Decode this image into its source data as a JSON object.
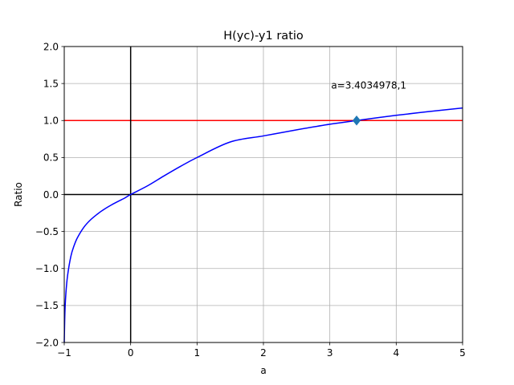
{
  "chart_data": {
    "type": "line",
    "title": "H(yc)-y1 ratio",
    "xlabel": "a",
    "ylabel": "Ratio",
    "xlim": [
      -1,
      5
    ],
    "ylim": [
      -2,
      2
    ],
    "xticks": [
      -1,
      0,
      1,
      2,
      3,
      4,
      5
    ],
    "yticks": [
      -2.0,
      -1.5,
      -1.0,
      -0.5,
      0.0,
      0.5,
      1.0,
      1.5,
      2.0
    ],
    "xtick_labels": [
      "−1",
      "0",
      "1",
      "2",
      "3",
      "4",
      "5"
    ],
    "ytick_labels": [
      "−2.0",
      "−1.5",
      "−1.0",
      "−0.5",
      "0.0",
      "0.5",
      "1.0",
      "1.5",
      "2.0"
    ],
    "grid": true,
    "series": [
      {
        "color": "#0000ff",
        "x": [
          -0.9999,
          -0.99,
          -0.975,
          -0.95,
          -0.9,
          -0.85,
          -0.8,
          -0.7,
          -0.6,
          -0.5,
          -0.4,
          -0.3,
          -0.2,
          -0.1,
          0,
          0.25,
          0.5,
          0.75,
          1,
          1.5,
          2,
          2.5,
          3,
          3.4035,
          4,
          4.5,
          5
        ],
        "y": [
          -2.0,
          -1.597,
          -1.333,
          -1.097,
          -0.834,
          -0.686,
          -0.581,
          -0.437,
          -0.339,
          -0.264,
          -0.2,
          -0.146,
          -0.098,
          -0.053,
          0.0,
          0.115,
          0.25,
          0.38,
          0.5,
          0.71,
          0.792,
          0.874,
          0.95,
          1.0,
          1.07,
          1.122,
          1.17
        ]
      }
    ],
    "hlines": [
      {
        "y": 1.0,
        "color": "#ff0000"
      },
      {
        "y": 0.0,
        "color": "#000000"
      }
    ],
    "vlines": [
      {
        "x": 0.0,
        "color": "#000000"
      }
    ],
    "marker": {
      "x": 3.4034978,
      "y": 1.0,
      "shape": "diamond",
      "color": "#1f77b4"
    },
    "annotation": {
      "text": "a=3.4034978,1",
      "x": 3.02,
      "y": 1.43
    }
  }
}
